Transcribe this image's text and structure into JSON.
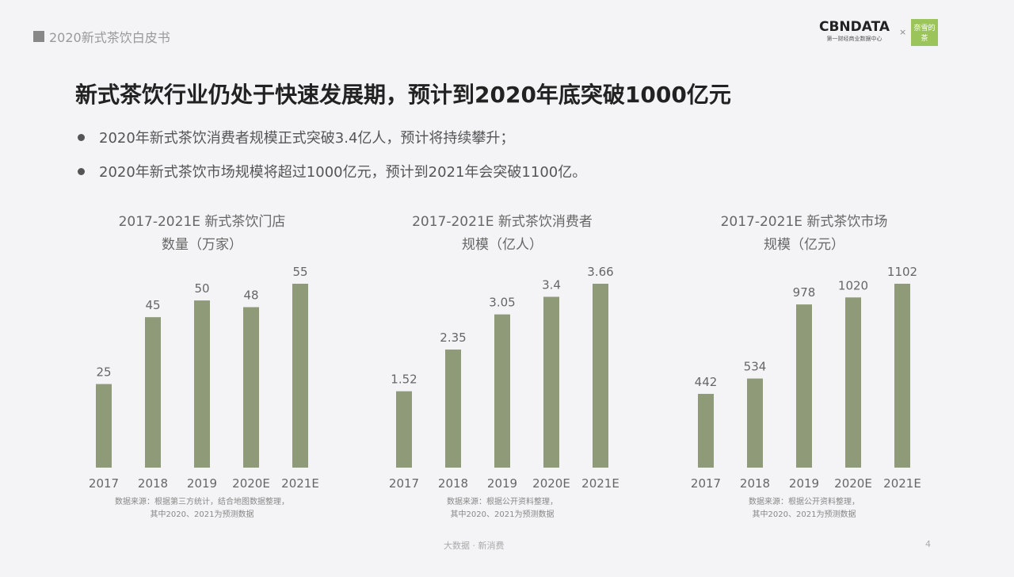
{
  "header": {
    "report_title": "2020新式茶饮白皮书",
    "logo": "CBNDATA",
    "logo_sub": "第一财经商业数据中心",
    "partner_logo": "奈雪的茶",
    "times": "×"
  },
  "title": "新式茶饮行业仍处于快速发展期，预计到2020年底突破1000亿元",
  "bullets": [
    "2020年新式茶饮消费者规模正式突破3.4亿人，预计将持续攀升；",
    "2020年新式茶饮市场规模将超过1000亿元，预计到2021年会突破1100亿。"
  ],
  "colors": {
    "bar": "#8f9a78"
  },
  "chart_data": [
    {
      "type": "bar",
      "title_line1": "2017-2021E 新式茶饮门店",
      "title_line2": "数量（万家）",
      "categories": [
        "2017",
        "2018",
        "2019",
        "2020E",
        "2021E"
      ],
      "values": [
        25,
        45,
        50,
        48,
        55
      ],
      "labels": [
        "25",
        "45",
        "50",
        "48",
        "55"
      ],
      "source_line1": "数据来源：根据第三方统计，结合地图数据整理，",
      "source_line2": "其中2020、2021为预测数据"
    },
    {
      "type": "bar",
      "title_line1": "2017-2021E 新式茶饮消费者",
      "title_line2": "规模（亿人）",
      "categories": [
        "2017",
        "2018",
        "2019",
        "2020E",
        "2021E"
      ],
      "values": [
        1.52,
        2.35,
        3.05,
        3.4,
        3.66
      ],
      "labels": [
        "1.52",
        "2.35",
        "3.05",
        "3.4",
        "3.66"
      ],
      "source_line1": "数据来源：根据公开资料整理，",
      "source_line2": "其中2020、2021为预测数据"
    },
    {
      "type": "bar",
      "title_line1": "2017-2021E 新式茶饮市场",
      "title_line2": "规模（亿元）",
      "categories": [
        "2017",
        "2018",
        "2019",
        "2020E",
        "2021E"
      ],
      "values": [
        442,
        534,
        978,
        1020,
        1102
      ],
      "labels": [
        "442",
        "534",
        "978",
        "1020",
        "1102"
      ],
      "source_line1": "数据来源：根据公开资料整理，",
      "source_line2": "其中2020、2021为预测数据"
    }
  ],
  "footer": {
    "brands": "大数据 · 新消费",
    "page": "4"
  }
}
